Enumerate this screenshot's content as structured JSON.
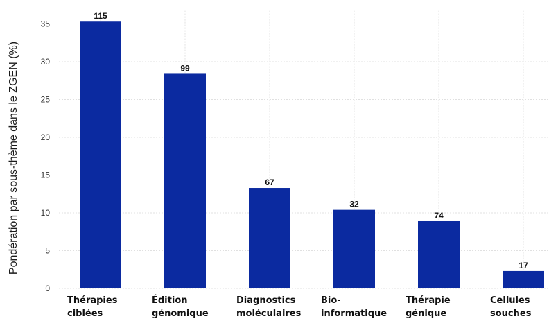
{
  "chart_data": {
    "type": "bar",
    "categories": [
      [
        "Thérapies",
        "ciblées"
      ],
      [
        "Édition",
        "génomique"
      ],
      [
        "Diagnostics",
        "moléculaires"
      ],
      [
        "Bio-",
        "informatique"
      ],
      [
        "Thérapie",
        "génique"
      ],
      [
        "Cellules",
        "souches"
      ]
    ],
    "values": [
      35.3,
      28.4,
      13.3,
      10.4,
      8.9,
      2.3
    ],
    "data_labels": [
      "115",
      "99",
      "67",
      "32",
      "74",
      "17"
    ],
    "title": "",
    "xlabel": "",
    "ylabel": "Pondération par sous-thème dans le ZGEN (%)",
    "ylim": [
      0,
      36
    ],
    "yticks": [
      0,
      5,
      10,
      15,
      20,
      25,
      30,
      35
    ],
    "grid": true,
    "bar_color": "#0b2aa0"
  }
}
